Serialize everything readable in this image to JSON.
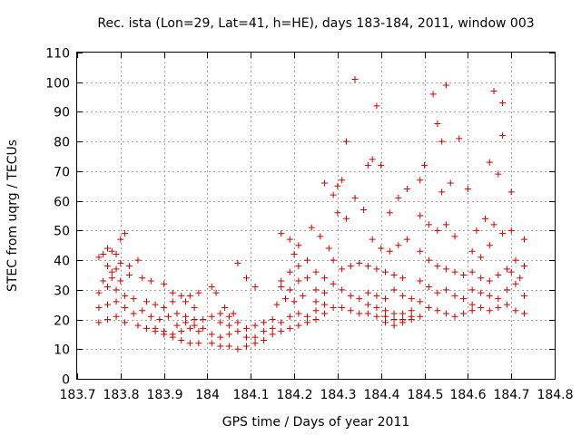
{
  "chart_data": {
    "type": "scatter",
    "title": "Rec. ista (Lon=29, Lat=41, h=HE), days 183-184, 2011, window 003",
    "xlabel": "GPS time / Days of year 2011",
    "ylabel": "STEC from uqrg / TECUs",
    "xlim": [
      183.7,
      184.8
    ],
    "ylim": [
      0,
      110
    ],
    "x_ticks": [
      "183.7",
      "183.8",
      "183.9",
      "184",
      "184.1",
      "184.2",
      "184.3",
      "184.4",
      "184.5",
      "184.6",
      "184.7",
      "184.8"
    ],
    "y_ticks": [
      "0",
      "10",
      "20",
      "30",
      "40",
      "50",
      "60",
      "70",
      "80",
      "90",
      "100",
      "110"
    ],
    "grid": true,
    "marker": "plus",
    "color": "#cc0000",
    "series": [
      {
        "points": [
          [
            183.75,
            41
          ],
          [
            183.76,
            42
          ],
          [
            183.77,
            44
          ],
          [
            183.78,
            43
          ],
          [
            183.79,
            42
          ],
          [
            183.8,
            47
          ],
          [
            183.81,
            49
          ],
          [
            183.82,
            38
          ],
          [
            183.84,
            40
          ],
          [
            183.77,
            38
          ],
          [
            183.78,
            36
          ],
          [
            183.79,
            37
          ],
          [
            183.8,
            39
          ],
          [
            183.76,
            33
          ],
          [
            183.78,
            34
          ],
          [
            183.8,
            33
          ],
          [
            183.82,
            35
          ],
          [
            183.85,
            34
          ],
          [
            183.87,
            33
          ],
          [
            183.9,
            32
          ],
          [
            183.92,
            29
          ],
          [
            183.94,
            28
          ],
          [
            183.96,
            28
          ],
          [
            183.98,
            29
          ],
          [
            183.75,
            29
          ],
          [
            183.77,
            31
          ],
          [
            183.79,
            30
          ],
          [
            183.81,
            28
          ],
          [
            183.83,
            27
          ],
          [
            183.86,
            26
          ],
          [
            183.88,
            25
          ],
          [
            183.9,
            24
          ],
          [
            183.92,
            26
          ],
          [
            183.95,
            26
          ],
          [
            183.97,
            24
          ],
          [
            183.75,
            24
          ],
          [
            183.77,
            25
          ],
          [
            183.79,
            26
          ],
          [
            183.81,
            24
          ],
          [
            183.83,
            22
          ],
          [
            183.85,
            23
          ],
          [
            183.87,
            21
          ],
          [
            183.89,
            20
          ],
          [
            183.91,
            21
          ],
          [
            183.93,
            22
          ],
          [
            183.95,
            21
          ],
          [
            183.97,
            20
          ],
          [
            183.99,
            20
          ],
          [
            183.75,
            19
          ],
          [
            183.77,
            20
          ],
          [
            183.79,
            21
          ],
          [
            183.81,
            19
          ],
          [
            183.84,
            18
          ],
          [
            183.86,
            17
          ],
          [
            183.88,
            16
          ],
          [
            183.9,
            15
          ],
          [
            183.92,
            15
          ],
          [
            183.94,
            16
          ],
          [
            183.96,
            17
          ],
          [
            183.98,
            16
          ],
          [
            183.88,
            17
          ],
          [
            183.9,
            16
          ],
          [
            183.92,
            14
          ],
          [
            183.94,
            13
          ],
          [
            183.96,
            12
          ],
          [
            183.98,
            12
          ],
          [
            183.93,
            18
          ],
          [
            183.95,
            19
          ],
          [
            183.97,
            18
          ],
          [
            183.99,
            17
          ],
          [
            184.01,
            31
          ],
          [
            184.02,
            29
          ],
          [
            184.04,
            24
          ],
          [
            184.06,
            22
          ],
          [
            184.07,
            39
          ],
          [
            184.09,
            34
          ],
          [
            184.11,
            31
          ],
          [
            184.03,
            22
          ],
          [
            184.05,
            21
          ],
          [
            184.01,
            21
          ],
          [
            184.03,
            19
          ],
          [
            184.05,
            18
          ],
          [
            184.07,
            19
          ],
          [
            184.09,
            17
          ],
          [
            184.11,
            18
          ],
          [
            184.13,
            19
          ],
          [
            184.15,
            20
          ],
          [
            184.01,
            15
          ],
          [
            184.03,
            14
          ],
          [
            184.05,
            15
          ],
          [
            184.07,
            16
          ],
          [
            184.09,
            14
          ],
          [
            184.11,
            14
          ],
          [
            184.13,
            16
          ],
          [
            184.15,
            17
          ],
          [
            184.01,
            12
          ],
          [
            184.03,
            11
          ],
          [
            184.05,
            11
          ],
          [
            184.07,
            10
          ],
          [
            184.09,
            11
          ],
          [
            184.11,
            12
          ],
          [
            184.13,
            13
          ],
          [
            184.15,
            15
          ],
          [
            184.17,
            16
          ],
          [
            184.19,
            17
          ],
          [
            184.21,
            18
          ],
          [
            184.23,
            19
          ],
          [
            184.17,
            19
          ],
          [
            184.19,
            21
          ],
          [
            184.21,
            22
          ],
          [
            184.16,
            25
          ],
          [
            184.18,
            27
          ],
          [
            184.2,
            26
          ],
          [
            184.22,
            28
          ],
          [
            184.17,
            31
          ],
          [
            184.19,
            30
          ],
          [
            184.21,
            33
          ],
          [
            184.23,
            34
          ],
          [
            184.17,
            33
          ],
          [
            184.19,
            36
          ],
          [
            184.21,
            38
          ],
          [
            184.23,
            40
          ],
          [
            184.17,
            49
          ],
          [
            184.19,
            47
          ],
          [
            184.21,
            45
          ],
          [
            184.2,
            42
          ],
          [
            184.24,
            51
          ],
          [
            184.26,
            48
          ],
          [
            184.27,
            66
          ],
          [
            184.29,
            62
          ],
          [
            184.3,
            65
          ],
          [
            184.31,
            67
          ],
          [
            184.32,
            80
          ],
          [
            184.34,
            61
          ],
          [
            184.34,
            101
          ],
          [
            184.3,
            56
          ],
          [
            184.32,
            54
          ],
          [
            184.28,
            44
          ],
          [
            184.29,
            40
          ],
          [
            184.31,
            37
          ],
          [
            184.33,
            38
          ],
          [
            184.35,
            39
          ],
          [
            184.25,
            36
          ],
          [
            184.27,
            34
          ],
          [
            184.29,
            32
          ],
          [
            184.31,
            30
          ],
          [
            184.33,
            28
          ],
          [
            184.35,
            27
          ],
          [
            184.25,
            30
          ],
          [
            184.27,
            29
          ],
          [
            184.25,
            26
          ],
          [
            184.27,
            25
          ],
          [
            184.29,
            24
          ],
          [
            184.31,
            24
          ],
          [
            184.33,
            23
          ],
          [
            184.35,
            22
          ],
          [
            184.25,
            23
          ],
          [
            184.27,
            22
          ],
          [
            184.23,
            21
          ],
          [
            184.25,
            20
          ],
          [
            184.37,
            22
          ],
          [
            184.39,
            21
          ],
          [
            184.41,
            21
          ],
          [
            184.43,
            20
          ],
          [
            184.45,
            20
          ],
          [
            184.47,
            21
          ],
          [
            184.36,
            57
          ],
          [
            184.37,
            72
          ],
          [
            184.38,
            74
          ],
          [
            184.39,
            92
          ],
          [
            184.4,
            72
          ],
          [
            184.42,
            56
          ],
          [
            184.44,
            61
          ],
          [
            184.46,
            64
          ],
          [
            184.38,
            47
          ],
          [
            184.4,
            44
          ],
          [
            184.42,
            43
          ],
          [
            184.44,
            45
          ],
          [
            184.46,
            47
          ],
          [
            184.37,
            38
          ],
          [
            184.39,
            37
          ],
          [
            184.41,
            36
          ],
          [
            184.43,
            35
          ],
          [
            184.45,
            34
          ],
          [
            184.37,
            29
          ],
          [
            184.39,
            28
          ],
          [
            184.41,
            27
          ],
          [
            184.43,
            30
          ],
          [
            184.45,
            28
          ],
          [
            184.47,
            27
          ],
          [
            184.37,
            25
          ],
          [
            184.39,
            24
          ],
          [
            184.41,
            23
          ],
          [
            184.43,
            22
          ],
          [
            184.45,
            22
          ],
          [
            184.47,
            23
          ],
          [
            184.41,
            19
          ],
          [
            184.43,
            18
          ],
          [
            184.45,
            19
          ],
          [
            184.47,
            20
          ],
          [
            184.49,
            21
          ],
          [
            184.49,
            67
          ],
          [
            184.5,
            72
          ],
          [
            184.52,
            96
          ],
          [
            184.54,
            63
          ],
          [
            184.55,
            99
          ],
          [
            184.53,
            86
          ],
          [
            184.54,
            80
          ],
          [
            184.56,
            66
          ],
          [
            184.58,
            81
          ],
          [
            184.6,
            64
          ],
          [
            184.49,
            55
          ],
          [
            184.51,
            52
          ],
          [
            184.53,
            50
          ],
          [
            184.55,
            52
          ],
          [
            184.57,
            48
          ],
          [
            184.49,
            43
          ],
          [
            184.51,
            40
          ],
          [
            184.53,
            38
          ],
          [
            184.55,
            37
          ],
          [
            184.57,
            36
          ],
          [
            184.59,
            35
          ],
          [
            184.49,
            33
          ],
          [
            184.51,
            31
          ],
          [
            184.53,
            29
          ],
          [
            184.55,
            30
          ],
          [
            184.57,
            28
          ],
          [
            184.59,
            27
          ],
          [
            184.49,
            26
          ],
          [
            184.51,
            24
          ],
          [
            184.53,
            23
          ],
          [
            184.55,
            22
          ],
          [
            184.57,
            21
          ],
          [
            184.59,
            22
          ],
          [
            184.61,
            23
          ],
          [
            184.61,
            43
          ],
          [
            184.63,
            41
          ],
          [
            184.65,
            45
          ],
          [
            184.62,
            50
          ],
          [
            184.64,
            54
          ],
          [
            184.65,
            73
          ],
          [
            184.66,
            97
          ],
          [
            184.67,
            69
          ],
          [
            184.68,
            82
          ],
          [
            184.68,
            93
          ],
          [
            184.7,
            63
          ],
          [
            184.66,
            52
          ],
          [
            184.68,
            49
          ],
          [
            184.7,
            50
          ],
          [
            184.61,
            36
          ],
          [
            184.63,
            34
          ],
          [
            184.65,
            33
          ],
          [
            184.67,
            35
          ],
          [
            184.69,
            37
          ],
          [
            184.71,
            40
          ],
          [
            184.73,
            38
          ],
          [
            184.61,
            30
          ],
          [
            184.63,
            29
          ],
          [
            184.65,
            28
          ],
          [
            184.67,
            27
          ],
          [
            184.69,
            30
          ],
          [
            184.71,
            32
          ],
          [
            184.73,
            47
          ],
          [
            184.61,
            25
          ],
          [
            184.63,
            24
          ],
          [
            184.65,
            23
          ],
          [
            184.67,
            24
          ],
          [
            184.69,
            25
          ],
          [
            184.71,
            23
          ],
          [
            184.73,
            22
          ],
          [
            184.72,
            34
          ],
          [
            184.73,
            28
          ],
          [
            184.7,
            36
          ]
        ]
      }
    ]
  }
}
